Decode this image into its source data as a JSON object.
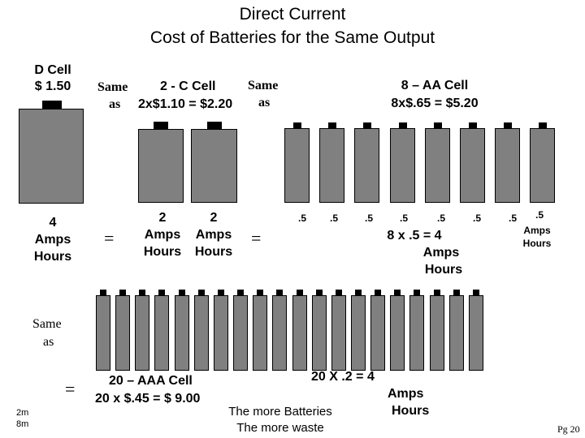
{
  "title": {
    "line1": "Direct Current",
    "line2": "Cost of Batteries for the Same Output"
  },
  "d_cell": {
    "name": "D  Cell",
    "price": "$ 1.50",
    "amps_value": "4",
    "amps_unit": "Amps",
    "hours_unit": "Hours"
  },
  "c_cell": {
    "same_as_left": "Same",
    "as_left": "as",
    "name": "2 - C Cell",
    "cost": "2x$1.10 = $2.20",
    "same_as_right": "Same",
    "as_right": "as",
    "amps_value": "2",
    "amps_unit": "Amps",
    "hours_unit": "Hours"
  },
  "aa_cell": {
    "name": "8 – AA Cell",
    "cost": "8x$.65 = $5.20",
    "unit_value": ".5",
    "sum_line": "8 x .5  = 4",
    "sum_amps": "Amps",
    "sum_hours": "Hours",
    "last_amps": "Amps",
    "last_hours": "Hours"
  },
  "equals_sign": "=",
  "aaa_cell": {
    "same": "Same",
    "as": "as",
    "name": "20 – AAA Cell",
    "cost": "20 x $.45 = $ 9.00",
    "sum_line": "20  X  .2  = 4",
    "sum_amps": "Amps",
    "sum_hours": "Hours"
  },
  "note": {
    "line1": "The more Batteries",
    "line2": "The more waste"
  },
  "timer": {
    "line1": "2m",
    "line2": "8m"
  },
  "page_number": "Pg 20",
  "colors": {
    "battery_fill": "#808080",
    "terminal": "#000000",
    "background": "#ffffff"
  }
}
